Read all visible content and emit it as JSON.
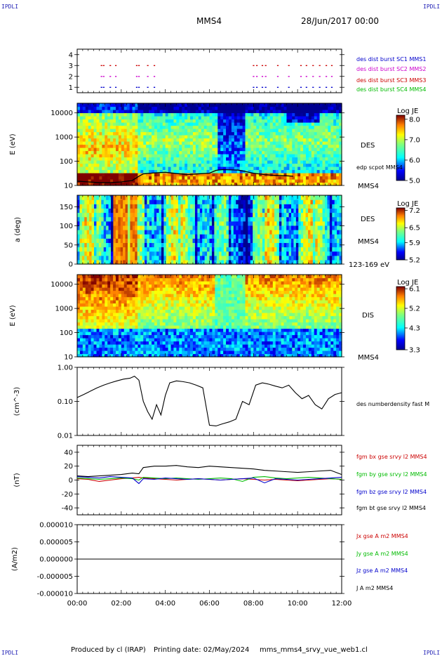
{
  "header": {
    "corner_labels": [
      "IPDLI",
      "IPDLI",
      "IPDLI",
      "IPDLI"
    ],
    "spacecraft": "MMS4",
    "date": "28/Jun/2017 00:00"
  },
  "footer": {
    "produced": "Produced by cl (IRAP)",
    "printing": "Printing date: 02/May/2024",
    "script": "mms_mms4_srvy_vue_web1.cl"
  },
  "time_axis": {
    "ticks": [
      "00:00",
      "02:00",
      "04:00",
      "06:00",
      "08:00",
      "10:00",
      "12:00"
    ]
  },
  "colors": {
    "red": "#cc0000",
    "magenta": "#cc00cc",
    "blue": "#0000cc",
    "green": "#00bb00",
    "black": "#000000"
  },
  "chart_data": [
    {
      "type": "scatter",
      "panel": "burst",
      "yticks": [
        "1",
        "2",
        "3",
        "4"
      ],
      "ylim": [
        0.5,
        4.5
      ],
      "legend": [
        "des dist burst SC1 MMS1",
        "des dist burst SC2 MMS2",
        "des dist burst SC3 MMS3",
        "des dist burst SC4 MMS4"
      ],
      "legend_colors": [
        "#0000cc",
        "#cc00cc",
        "#cc0000",
        "#00bb00"
      ],
      "series": [
        {
          "level": 3,
          "color": "#cc0000",
          "x": [
            1.1,
            1.2,
            1.5,
            1.75,
            2.7,
            2.8,
            3.2,
            3.5,
            8.0,
            8.15,
            8.4,
            8.55,
            9.1,
            9.6,
            10.15,
            10.4,
            10.7,
            11.0,
            11.3,
            11.55
          ]
        },
        {
          "level": 2,
          "color": "#cc00cc",
          "x": [
            1.1,
            1.2,
            1.5,
            1.75,
            2.7,
            2.8,
            3.2,
            3.5,
            8.0,
            8.15,
            8.4,
            8.55,
            9.1,
            9.6,
            10.15,
            10.4,
            10.7,
            11.0,
            11.3,
            11.55
          ]
        },
        {
          "level": 1,
          "color": "#0000cc",
          "x": [
            1.1,
            1.2,
            1.5,
            1.75,
            2.7,
            2.8,
            3.2,
            3.5,
            8.0,
            8.15,
            8.4,
            8.55,
            9.1,
            9.6,
            10.15,
            10.4,
            10.7,
            11.0,
            11.3,
            11.55
          ]
        }
      ]
    },
    {
      "type": "heatmap",
      "panel": "des_energy",
      "ylabel": "E (eV)",
      "yticks": [
        "10",
        "100",
        "1000",
        "10000"
      ],
      "log": true,
      "right_labels": [
        "DES",
        "edp scpot MMS4",
        "MMS4"
      ],
      "colorbar": {
        "title": "Log JE",
        "ticks": [
          "8.0",
          "7.0",
          "6.0",
          "5.0"
        ],
        "range": [
          5.0,
          8.2
        ]
      },
      "scpot_eV": {
        "x": [
          0,
          0.5,
          1.0,
          1.5,
          2.0,
          2.5,
          2.8,
          3.0,
          3.5,
          4.0,
          4.5,
          5.0,
          5.5,
          6.0,
          6.3,
          6.6,
          7.0,
          7.3,
          7.6,
          8.0,
          8.5,
          9.0,
          9.5,
          9.8
        ],
        "y": [
          15,
          14,
          13,
          13,
          14,
          16,
          24,
          30,
          33,
          35,
          31,
          28,
          30,
          32,
          42,
          45,
          44,
          43,
          38,
          32,
          28,
          26,
          25,
          24
        ]
      }
    },
    {
      "type": "heatmap",
      "panel": "des_pitch",
      "ylabel": "a (deg)",
      "yticks": [
        "0",
        "50",
        "100",
        "150"
      ],
      "ylim": [
        0,
        180
      ],
      "right_labels": [
        "DES",
        "MMS4",
        "123-169 eV"
      ],
      "colorbar": {
        "title": "Log JE",
        "ticks": [
          "7.2",
          "6.5",
          "5.9",
          "5.2"
        ],
        "range": [
          5.2,
          7.3
        ]
      }
    },
    {
      "type": "heatmap",
      "panel": "dis_energy",
      "ylabel": "E (eV)",
      "yticks": [
        "10",
        "100",
        "1000",
        "10000"
      ],
      "log": true,
      "right_labels": [
        "DIS",
        "MMS4"
      ],
      "colorbar": {
        "title": "Log JE",
        "ticks": [
          "6.1",
          "5.2",
          "4.3",
          "3.3"
        ],
        "range": [
          3.3,
          6.2
        ]
      }
    },
    {
      "type": "line",
      "panel": "density",
      "ylabel": "(cm^-3)",
      "yticks": [
        "0.01",
        "0.10",
        "1.00"
      ],
      "log": true,
      "ylim": [
        0.01,
        1.0
      ],
      "legend": [
        "des numberdensity fast M"
      ],
      "series": [
        {
          "color": "#000000",
          "x": [
            0,
            0.3,
            0.6,
            0.9,
            1.2,
            1.5,
            1.8,
            2.1,
            2.4,
            2.6,
            2.8,
            3.0,
            3.2,
            3.4,
            3.6,
            3.8,
            4.0,
            4.2,
            4.5,
            4.8,
            5.1,
            5.4,
            5.7,
            6.0,
            6.3,
            6.6,
            6.9,
            7.2,
            7.5,
            7.8,
            8.1,
            8.4,
            8.7,
            9.0,
            9.3,
            9.6,
            9.9,
            10.2,
            10.5,
            10.8,
            11.1,
            11.4,
            11.7,
            12.0
          ],
          "y": [
            0.13,
            0.16,
            0.2,
            0.25,
            0.3,
            0.35,
            0.4,
            0.45,
            0.48,
            0.55,
            0.42,
            0.1,
            0.05,
            0.03,
            0.08,
            0.04,
            0.15,
            0.35,
            0.4,
            0.38,
            0.35,
            0.3,
            0.25,
            0.02,
            0.019,
            0.022,
            0.025,
            0.03,
            0.1,
            0.08,
            0.3,
            0.35,
            0.32,
            0.28,
            0.25,
            0.3,
            0.18,
            0.12,
            0.15,
            0.08,
            0.06,
            0.12,
            0.16,
            0.18
          ]
        }
      ]
    },
    {
      "type": "line",
      "panel": "fgm",
      "ylabel": "(nT)",
      "yticks": [
        "-40",
        "-20",
        "0",
        "20",
        "40"
      ],
      "ylim": [
        -50,
        50
      ],
      "legend": [
        "fgm bx gse srvy l2 MMS4",
        "fgm by gse srvy l2 MMS4",
        "fgm bz gse srvy l2 MMS4",
        "fgm bt gse srvy l2 MMS4"
      ],
      "legend_colors": [
        "#cc0000",
        "#00bb00",
        "#0000cc",
        "#000000"
      ],
      "x": [
        0,
        0.5,
        1.0,
        1.5,
        2.0,
        2.5,
        2.8,
        3.0,
        3.5,
        4.0,
        4.5,
        5.0,
        5.5,
        6.0,
        6.5,
        7.0,
        7.5,
        8.0,
        8.5,
        9.0,
        9.5,
        10.0,
        10.5,
        11.0,
        11.5,
        12.0
      ],
      "series": [
        {
          "name": "bx",
          "color": "#cc0000",
          "values": [
            2,
            1,
            -2,
            0,
            2,
            3,
            4,
            3,
            2,
            1,
            0,
            1,
            2,
            1,
            0,
            1,
            2,
            1,
            0,
            1,
            0,
            -1,
            0,
            1,
            2,
            1
          ]
        },
        {
          "name": "by",
          "color": "#00bb00",
          "values": [
            3,
            2,
            1,
            2,
            3,
            2,
            0,
            4,
            3,
            2,
            3,
            2,
            1,
            2,
            3,
            2,
            -2,
            4,
            5,
            3,
            2,
            3,
            4,
            3,
            2,
            1
          ]
        },
        {
          "name": "bz",
          "color": "#0000cc",
          "values": [
            5,
            4,
            3,
            5,
            4,
            3,
            -5,
            2,
            1,
            3,
            2,
            1,
            2,
            1,
            0,
            1,
            2,
            3,
            -4,
            2,
            1,
            0,
            1,
            2,
            3,
            4
          ]
        },
        {
          "name": "bt",
          "color": "#000000",
          "values": [
            6,
            5,
            6,
            7,
            8,
            10,
            9,
            18,
            20,
            20,
            21,
            19,
            18,
            20,
            19,
            18,
            17,
            16,
            14,
            13,
            12,
            11,
            12,
            13,
            14,
            8
          ]
        }
      ]
    },
    {
      "type": "line",
      "panel": "current",
      "ylabel": "(A/m2)",
      "yticks": [
        "-0.000010",
        "-0.000005",
        "0.000000",
        "0.000005",
        "0.000010"
      ],
      "ylim": [
        -1e-05,
        1e-05
      ],
      "legend": [
        "Jx gse A m2 MMS4",
        "Jy gse A m2 MMS4",
        "Jz gse A m2 MMS4",
        "J A m2 MMS4"
      ],
      "legend_colors": [
        "#cc0000",
        "#00bb00",
        "#0000cc",
        "#000000"
      ],
      "series": [
        {
          "color": "#000000",
          "x": [
            0,
            12
          ],
          "y": [
            0,
            0
          ]
        }
      ]
    }
  ]
}
